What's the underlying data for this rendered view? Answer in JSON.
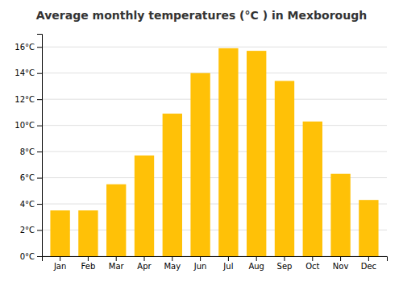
{
  "chart_data": {
    "type": "bar",
    "title": "Average monthly temperatures (°C ) in Mexborough",
    "categories": [
      "Jan",
      "Feb",
      "Mar",
      "Apr",
      "May",
      "Jun",
      "Jul",
      "Aug",
      "Sep",
      "Oct",
      "Nov",
      "Dec"
    ],
    "values": [
      3.5,
      3.5,
      5.5,
      7.7,
      10.9,
      14.0,
      15.9,
      15.7,
      13.4,
      10.3,
      6.3,
      4.3
    ],
    "color": "#FFC107",
    "ylim": [
      0,
      17
    ],
    "yticks": [
      {
        "value": 0,
        "label": "0°C"
      },
      {
        "value": 2,
        "label": "2°C"
      },
      {
        "value": 4,
        "label": "4°C"
      },
      {
        "value": 6,
        "label": "6°C"
      },
      {
        "value": 8,
        "label": "8°C"
      },
      {
        "value": 10,
        "label": "10°C"
      },
      {
        "value": 12,
        "label": "12°C"
      },
      {
        "value": 14,
        "label": "14°C"
      },
      {
        "value": 16,
        "label": "16°C"
      }
    ],
    "grid": true
  }
}
